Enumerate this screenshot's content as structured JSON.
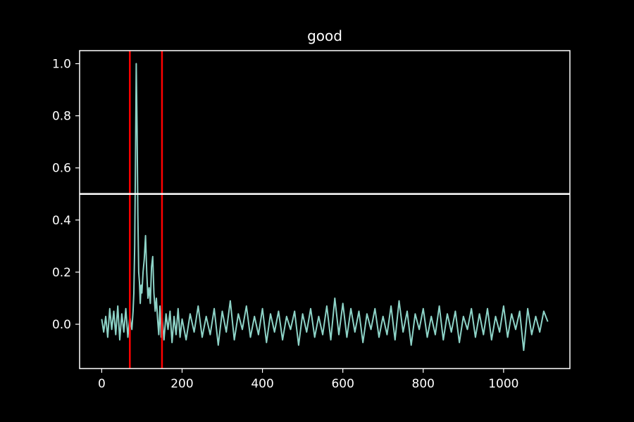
{
  "chart_data": {
    "type": "line",
    "title": "good",
    "xlabel": "",
    "ylabel": "",
    "xlim": [
      -55,
      1165
    ],
    "ylim": [
      -0.17,
      1.05
    ],
    "xticks": [
      0,
      200,
      400,
      600,
      800,
      1000
    ],
    "xtick_labels": [
      "0",
      "200",
      "400",
      "600",
      "800",
      "1000"
    ],
    "yticks": [
      0.0,
      0.2,
      0.4,
      0.6,
      0.8,
      1.0
    ],
    "ytick_labels": [
      "0.0",
      "0.2",
      "0.4",
      "0.6",
      "0.8",
      "1.0"
    ],
    "grid": false,
    "legend": null,
    "background": "#000000",
    "axes_color": "#ffffff",
    "series": [
      {
        "color": "#8dd3c7",
        "x": [
          0,
          5,
          10,
          15,
          20,
          25,
          30,
          35,
          40,
          45,
          50,
          55,
          60,
          65,
          70,
          75,
          78,
          80,
          82,
          84,
          86,
          88,
          90,
          92,
          94,
          96,
          98,
          100,
          103,
          106,
          109,
          112,
          115,
          118,
          121,
          124,
          127,
          130,
          133,
          136,
          139,
          142,
          145,
          148,
          150,
          155,
          160,
          165,
          170,
          175,
          180,
          185,
          190,
          195,
          200,
          210,
          220,
          230,
          240,
          250,
          260,
          270,
          280,
          290,
          300,
          310,
          320,
          330,
          340,
          350,
          360,
          370,
          380,
          390,
          400,
          410,
          420,
          430,
          440,
          450,
          460,
          470,
          480,
          490,
          500,
          510,
          520,
          530,
          540,
          550,
          560,
          570,
          580,
          590,
          600,
          610,
          620,
          630,
          640,
          650,
          660,
          670,
          680,
          690,
          700,
          710,
          720,
          730,
          740,
          750,
          760,
          770,
          780,
          790,
          800,
          810,
          820,
          830,
          840,
          850,
          860,
          870,
          880,
          890,
          900,
          910,
          920,
          930,
          940,
          950,
          960,
          970,
          980,
          990,
          1000,
          1010,
          1020,
          1030,
          1040,
          1050,
          1060,
          1070,
          1080,
          1090,
          1100,
          1110
        ],
        "y": [
          0.02,
          -0.03,
          0.03,
          -0.05,
          0.06,
          -0.02,
          0.05,
          -0.04,
          0.07,
          -0.06,
          0.04,
          -0.03,
          0.06,
          -0.05,
          0.03,
          -0.02,
          0.05,
          0.12,
          0.3,
          0.62,
          1.0,
          0.75,
          0.42,
          0.2,
          0.16,
          0.08,
          0.15,
          0.12,
          0.2,
          0.25,
          0.34,
          0.2,
          0.1,
          0.14,
          0.08,
          0.22,
          0.26,
          0.12,
          0.05,
          0.1,
          0.02,
          -0.04,
          0.07,
          -0.05,
          0.03,
          -0.06,
          0.04,
          -0.02,
          0.05,
          -0.07,
          0.03,
          -0.04,
          0.06,
          -0.05,
          0.02,
          -0.06,
          0.04,
          -0.03,
          0.07,
          -0.05,
          0.03,
          -0.04,
          0.06,
          -0.08,
          0.05,
          -0.03,
          0.09,
          -0.06,
          0.04,
          -0.02,
          0.07,
          -0.05,
          0.03,
          -0.04,
          0.06,
          -0.07,
          0.04,
          -0.03,
          0.05,
          -0.06,
          0.03,
          -0.02,
          0.05,
          -0.08,
          0.04,
          -0.03,
          0.06,
          -0.05,
          0.03,
          -0.04,
          0.07,
          -0.06,
          0.1,
          -0.04,
          0.08,
          -0.05,
          0.06,
          -0.03,
          0.05,
          -0.07,
          0.04,
          -0.02,
          0.06,
          -0.05,
          0.03,
          -0.04,
          0.07,
          -0.06,
          0.09,
          -0.03,
          0.05,
          -0.08,
          0.04,
          -0.02,
          0.06,
          -0.05,
          0.03,
          -0.04,
          0.07,
          -0.06,
          0.04,
          -0.03,
          0.05,
          -0.07,
          0.03,
          -0.02,
          0.06,
          -0.05,
          0.04,
          -0.04,
          0.06,
          -0.06,
          0.03,
          -0.03,
          0.07,
          -0.05,
          0.04,
          -0.02,
          0.05,
          -0.1,
          0.06,
          -0.04,
          0.03,
          -0.03,
          0.05,
          0.01
        ]
      }
    ],
    "vlines": [
      {
        "x": 70,
        "color": "#ff0000"
      },
      {
        "x": 150,
        "color": "#ff0000"
      }
    ],
    "hlines": [
      {
        "y": 0.5,
        "color": "#ffffff"
      }
    ]
  }
}
